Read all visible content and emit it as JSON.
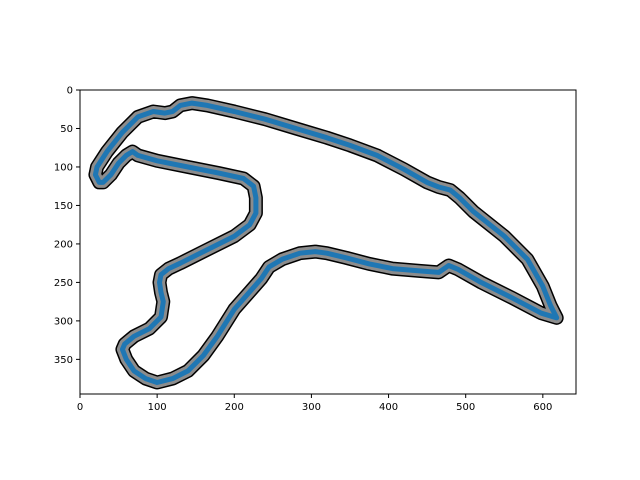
{
  "chart_data": {
    "type": "line",
    "title": "",
    "xlabel": "",
    "ylabel": "",
    "xlim": [
      0,
      643
    ],
    "ylim": [
      395,
      0
    ],
    "y_inverted": true,
    "grid": false,
    "x_ticks": [
      0,
      100,
      200,
      300,
      400,
      500,
      600
    ],
    "y_ticks": [
      0,
      50,
      100,
      150,
      200,
      250,
      300,
      350
    ],
    "colors": {
      "track_line": "#1f77b4",
      "track_band": "#8c8c8c",
      "track_edge": "#000000",
      "axes": "#000000"
    },
    "series": [
      {
        "x": [
          145,
          165,
          200,
          240,
          280,
          320,
          350,
          385,
          420,
          450,
          465,
          480,
          492,
          510,
          550,
          580,
          600,
          610,
          618,
          598,
          560,
          520,
          490,
          478,
          465,
          440,
          405,
          375,
          345,
          320,
          305,
          285,
          262,
          245,
          235,
          222,
          200,
          178,
          160,
          140,
          120,
          100,
          85,
          70,
          60,
          55,
          58,
          70,
          90,
          105,
          108,
          105,
          103,
          105,
          115,
          130,
          160,
          200,
          220,
          228,
          228,
          225,
          212,
          180,
          140,
          100,
          75,
          68,
          60,
          50,
          40,
          30,
          25,
          20,
          22,
          35,
          55,
          75,
          95,
          110,
          120,
          130,
          145
        ],
        "y": [
          17,
          20,
          28,
          38,
          50,
          62,
          72,
          85,
          103,
          120,
          126,
          130,
          140,
          158,
          190,
          220,
          255,
          280,
          296,
          290,
          270,
          250,
          233,
          228,
          237,
          235,
          232,
          226,
          218,
          212,
          210,
          212,
          220,
          230,
          245,
          260,
          285,
          320,
          345,
          365,
          375,
          380,
          375,
          365,
          350,
          337,
          330,
          320,
          310,
          295,
          275,
          263,
          250,
          240,
          232,
          225,
          210,
          190,
          175,
          160,
          140,
          125,
          115,
          108,
          100,
          92,
          85,
          80,
          85,
          95,
          110,
          120,
          120,
          110,
          100,
          80,
          55,
          35,
          28,
          30,
          28,
          20,
          17
        ]
      }
    ]
  }
}
